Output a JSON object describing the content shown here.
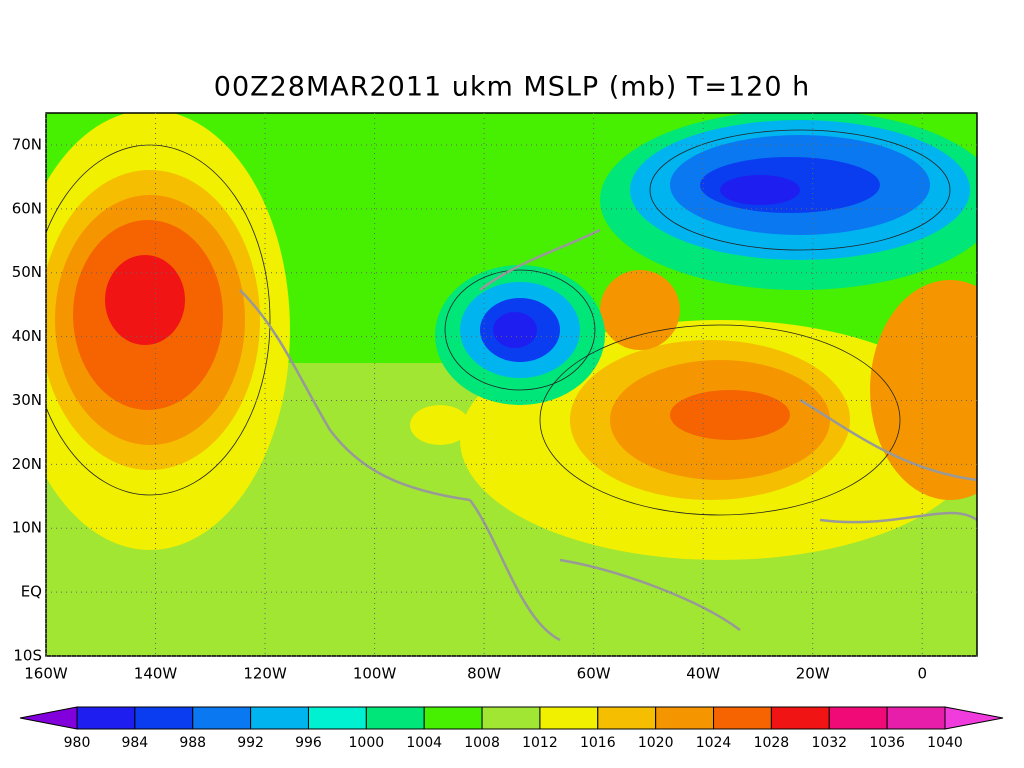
{
  "title": "00Z28MAR2011 ukm MSLP (mb) T=120 h",
  "map": {
    "xlim": [
      -160,
      10
    ],
    "ylim": [
      -10,
      75
    ],
    "xticks": [
      {
        "value": -160,
        "label": "160W"
      },
      {
        "value": -140,
        "label": "140W"
      },
      {
        "value": -120,
        "label": "120W"
      },
      {
        "value": -100,
        "label": "100W"
      },
      {
        "value": -80,
        "label": "80W"
      },
      {
        "value": -60,
        "label": "60W"
      },
      {
        "value": -40,
        "label": "40W"
      },
      {
        "value": -20,
        "label": "20W"
      },
      0
    ],
    "yticks": [
      {
        "value": -10,
        "label": "10S"
      },
      {
        "value": 0,
        "label": "EQ"
      },
      {
        "value": 10,
        "label": "10N"
      },
      {
        "value": 20,
        "label": "20N"
      },
      {
        "value": 30,
        "label": "30N"
      },
      {
        "value": 40,
        "label": "40N"
      },
      {
        "value": 50,
        "label": "50N"
      },
      {
        "value": 60,
        "label": "60N"
      },
      {
        "value": 70,
        "label": "70N"
      }
    ]
  },
  "colorbar": {
    "levels": [
      980,
      984,
      988,
      992,
      996,
      1000,
      1004,
      1008,
      1012,
      1016,
      1020,
      1024,
      1028,
      1032,
      1036,
      1040
    ],
    "colors": [
      "#8200dc",
      "#1e1ef0",
      "#0a3cf0",
      "#0a78f0",
      "#00b4f0",
      "#00f0d2",
      "#00e678",
      "#46f000",
      "#a0e632",
      "#f0f000",
      "#f5be00",
      "#f59600",
      "#f56400",
      "#f01414",
      "#f00a78",
      "#e61eaa",
      "#f03cdc"
    ]
  }
}
